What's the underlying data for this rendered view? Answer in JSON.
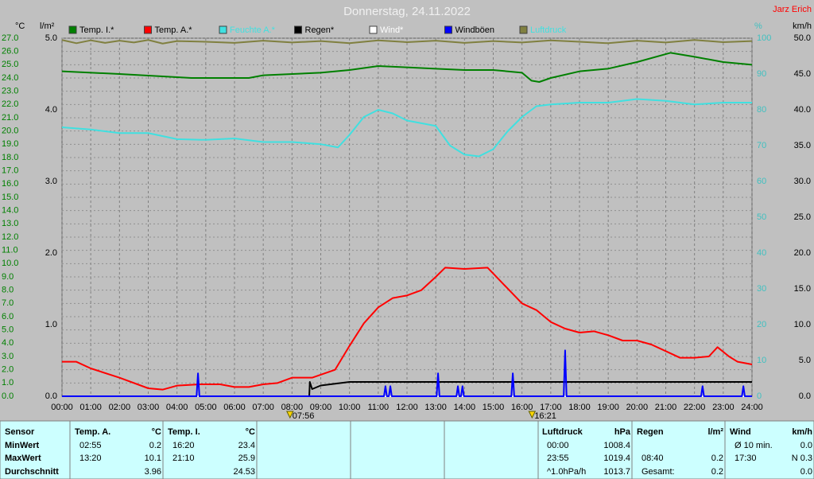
{
  "chart_data": {
    "type": "line",
    "title": "Donnerstag, 24.11.2022",
    "author": "Jarz Erich",
    "y_label": "°C",
    "y2_label": "l/m²",
    "y3_label": "%",
    "y4_label": "km/h",
    "xlim": [
      0,
      24
    ],
    "xticks": [
      {
        "value": 0,
        "label": "00:00"
      },
      {
        "value": 1,
        "label": "01:00"
      },
      {
        "value": 2,
        "label": "02:00"
      },
      {
        "value": 3,
        "label": "03:00"
      },
      {
        "value": 4,
        "label": "04:00"
      },
      {
        "value": 5,
        "label": "05:00"
      },
      {
        "value": 6,
        "label": "06:00"
      },
      {
        "value": 7,
        "label": "07:00"
      },
      {
        "value": 8,
        "label": "08:00"
      },
      {
        "value": 9,
        "label": "09:00"
      },
      {
        "value": 10,
        "label": "10:00"
      },
      {
        "value": 11,
        "label": "11:00"
      },
      {
        "value": 12,
        "label": "12:00"
      },
      {
        "value": 13,
        "label": "13:00"
      },
      {
        "value": 14,
        "label": "14:00"
      },
      {
        "value": 15,
        "label": "15:00"
      },
      {
        "value": 16,
        "label": "16:00"
      },
      {
        "value": 17,
        "label": "17:00"
      },
      {
        "value": 18,
        "label": "18:00"
      },
      {
        "value": 19,
        "label": "19:00"
      },
      {
        "value": 20,
        "label": "20:00"
      },
      {
        "value": 21,
        "label": "21:00"
      },
      {
        "value": 22,
        "label": "22:00"
      },
      {
        "value": 23,
        "label": "23:00"
      },
      {
        "value": 24,
        "label": "24:00"
      }
    ],
    "ylim": [
      0,
      27
    ],
    "yticks": [
      {
        "value": 0,
        "label": "0.0"
      },
      {
        "value": 1,
        "label": "1.0"
      },
      {
        "value": 2,
        "label": "2.0"
      },
      {
        "value": 3,
        "label": "3.0"
      },
      {
        "value": 4,
        "label": "4.0"
      },
      {
        "value": 5,
        "label": "5.0"
      },
      {
        "value": 6,
        "label": "6.0"
      },
      {
        "value": 7,
        "label": "7.0"
      },
      {
        "value": 8,
        "label": "8.0"
      },
      {
        "value": 9,
        "label": "9.0"
      },
      {
        "value": 10,
        "label": "10.0"
      },
      {
        "value": 11,
        "label": "11.0"
      },
      {
        "value": 12,
        "label": "12.0"
      },
      {
        "value": 13,
        "label": "13.0"
      },
      {
        "value": 14,
        "label": "14.0"
      },
      {
        "value": 15,
        "label": "15.0"
      },
      {
        "value": 16,
        "label": "16.0"
      },
      {
        "value": 17,
        "label": "17.0"
      },
      {
        "value": 18,
        "label": "18.0"
      },
      {
        "value": 19,
        "label": "19.0"
      },
      {
        "value": 20,
        "label": "20.0"
      },
      {
        "value": 21,
        "label": "21.0"
      },
      {
        "value": 22,
        "label": "22.0"
      },
      {
        "value": 23,
        "label": "23.0"
      },
      {
        "value": 24,
        "label": "24.0"
      },
      {
        "value": 25,
        "label": "25.0"
      },
      {
        "value": 26,
        "label": "26.0"
      },
      {
        "value": 27,
        "label": "27.0"
      }
    ],
    "y2lim": [
      0,
      5
    ],
    "y2ticks": [
      {
        "value": 0,
        "label": "0.0"
      },
      {
        "value": 1,
        "label": "1.0"
      },
      {
        "value": 2,
        "label": "2.0"
      },
      {
        "value": 3,
        "label": "3.0"
      },
      {
        "value": 4,
        "label": "4.0"
      },
      {
        "value": 5,
        "label": "5.0"
      }
    ],
    "y3lim": [
      0,
      100
    ],
    "y3ticks": [
      0,
      10,
      20,
      30,
      40,
      50,
      60,
      70,
      80,
      90,
      100
    ],
    "y4lim": [
      0,
      50
    ],
    "y4ticks": [
      {
        "value": 0,
        "label": "0.0"
      },
      {
        "value": 5,
        "label": "5.0"
      },
      {
        "value": 10,
        "label": "10.0"
      },
      {
        "value": 15,
        "label": "15.0"
      },
      {
        "value": 20,
        "label": "20.0"
      },
      {
        "value": 25,
        "label": "25.0"
      },
      {
        "value": 30,
        "label": "30.0"
      },
      {
        "value": 35,
        "label": "35.0"
      },
      {
        "value": 40,
        "label": "40.0"
      },
      {
        "value": 45,
        "label": "45.0"
      },
      {
        "value": 50,
        "label": "50.0"
      }
    ],
    "grid": true,
    "series": [
      {
        "name": "Temp. I.*",
        "color": "#008000",
        "label_color": "#000000",
        "axis": "y",
        "x": [
          0,
          2,
          4.5,
          6.5,
          7,
          9,
          10,
          11,
          12,
          13,
          14,
          15,
          16,
          16.33,
          16.6,
          17,
          18,
          19,
          20,
          21.17,
          22,
          23,
          24
        ],
        "values": [
          24.5,
          24.3,
          24.0,
          24.0,
          24.2,
          24.4,
          24.6,
          24.9,
          24.8,
          24.7,
          24.6,
          24.6,
          24.4,
          23.8,
          23.7,
          24.0,
          24.5,
          24.7,
          25.2,
          25.9,
          25.6,
          25.2,
          25.0
        ]
      },
      {
        "name": "Temp. A.*",
        "color": "#ff0000",
        "label_color": "#000000",
        "axis": "y",
        "x": [
          0,
          0.5,
          1,
          2,
          3,
          3.5,
          4,
          4.8,
          5.5,
          6,
          6.5,
          7,
          7.5,
          8,
          8.7,
          9.5,
          10,
          10.5,
          11,
          11.5,
          12,
          12.5,
          13,
          13.33,
          14,
          14.8,
          15.2,
          16,
          16.5,
          17,
          17.5,
          18,
          18.5,
          19,
          19.5,
          20,
          20.5,
          21,
          21.5,
          22,
          22.5,
          22.8,
          23.2,
          23.5,
          24
        ],
        "values": [
          2.6,
          2.6,
          2.1,
          1.4,
          0.6,
          0.5,
          0.8,
          0.9,
          0.9,
          0.7,
          0.7,
          0.9,
          1.0,
          1.4,
          1.4,
          2.0,
          3.8,
          5.5,
          6.7,
          7.4,
          7.6,
          8.0,
          9.0,
          9.7,
          9.6,
          9.7,
          8.8,
          7.0,
          6.5,
          5.6,
          5.1,
          4.8,
          4.9,
          4.6,
          4.2,
          4.2,
          3.9,
          3.4,
          2.9,
          2.9,
          3.0,
          3.7,
          3.0,
          2.6,
          2.4
        ]
      },
      {
        "name": "Feuchte A.*",
        "color": "#40e0e0",
        "label_color": "#40e0e0",
        "axis": "y3",
        "x": [
          0,
          1,
          2,
          3,
          4,
          5,
          6,
          7,
          8,
          9,
          9.6,
          10,
          10.5,
          11,
          11.5,
          12,
          13,
          13.5,
          14,
          14.5,
          15,
          15.5,
          16,
          16.5,
          17,
          18,
          19,
          20,
          21,
          22,
          23,
          24
        ],
        "values": [
          75.1,
          74.5,
          73.5,
          73.5,
          71.8,
          71.6,
          72,
          71,
          71,
          70.4,
          69.5,
          73,
          78,
          80,
          79,
          77,
          75.5,
          70,
          67.5,
          67,
          69,
          74,
          78,
          81,
          81.5,
          82,
          82,
          83,
          82.5,
          81.5,
          82,
          82
        ]
      },
      {
        "name": "Regen*",
        "color": "#000000",
        "label_color": "#000000",
        "axis": "y2",
        "x": [
          0,
          8.6,
          8.62,
          8.7,
          9,
          10,
          24
        ],
        "values": [
          0,
          0,
          0.2,
          0.1,
          0.15,
          0.2,
          0.2
        ]
      },
      {
        "name": "Wind*",
        "color": "#ffffff",
        "label_color": "#ffffff",
        "axis": "y4",
        "x": [
          0,
          24
        ],
        "values": [
          0,
          0
        ]
      },
      {
        "name": "Windböen",
        "color": "#0000ff",
        "label_color": "#000000",
        "axis": "y4",
        "x": [
          0,
          4.68,
          4.73,
          4.78,
          11.2,
          11.25,
          11.3,
          11.37,
          11.42,
          11.47,
          13.03,
          13.08,
          13.13,
          13.72,
          13.77,
          13.82,
          13.88,
          13.93,
          13.98,
          15.63,
          15.68,
          15.73,
          17.45,
          17.5,
          17.55,
          22.23,
          22.28,
          22.33,
          23.65,
          23.7,
          23.75,
          24
        ],
        "values": [
          0,
          0,
          3.2,
          0,
          0,
          1.4,
          0,
          0,
          1.4,
          0,
          0,
          3.2,
          0,
          0,
          1.4,
          0,
          0,
          1.4,
          0,
          0,
          3.2,
          0,
          0,
          6.4,
          0,
          0,
          1.4,
          0,
          0,
          1.4,
          0,
          0
        ]
      },
      {
        "name": "Luftdruck",
        "color": "#808040",
        "label_color": "#40e0e0",
        "axis": "y3",
        "x": [
          0,
          0.5,
          1,
          1.5,
          2,
          2.5,
          3,
          3.5,
          4,
          5,
          6,
          7,
          8,
          9,
          10,
          11,
          12,
          13,
          14,
          15,
          16,
          17,
          18,
          19,
          20,
          21,
          22,
          23,
          24
        ],
        "values": [
          99.5,
          98.6,
          99.4,
          98.7,
          99.3,
          98.8,
          99.5,
          98.5,
          99.2,
          99.0,
          98.7,
          99.3,
          98.8,
          99.2,
          98.6,
          99.4,
          98.9,
          99.3,
          98.7,
          99.2,
          98.8,
          99.4,
          99.0,
          98.6,
          99.3,
          98.8,
          99.5,
          98.9,
          99.2
        ]
      }
    ],
    "annotations": [
      {
        "label": "07:56",
        "x": 7.93
      },
      {
        "label": "16:21",
        "x": 16.35
      }
    ]
  },
  "table": {
    "corner": "Sensor",
    "columns": [
      {
        "name": "Temp. A.",
        "unit": "°C"
      },
      {
        "name": "Temp. I.",
        "unit": "°C"
      },
      {
        "name": "Luftdruck",
        "unit": "hPa"
      },
      {
        "name": "Regen",
        "unit": "l/m²"
      },
      {
        "name": "Wind",
        "unit": "km/h"
      }
    ],
    "rows": [
      {
        "label": "MinWert",
        "cells": [
          [
            "02:55",
            "0.2"
          ],
          [
            "16:20",
            "23.4"
          ],
          [
            "00:00",
            "1008.4"
          ],
          [
            null,
            null
          ],
          [
            "Ø 10 min.",
            "0.0"
          ]
        ]
      },
      {
        "label": "MaxWert",
        "cells": [
          [
            "13:20",
            "10.1"
          ],
          [
            "21:10",
            "25.9"
          ],
          [
            "23:55",
            "1019.4"
          ],
          [
            "08:40",
            "0.2"
          ],
          [
            "17:30",
            "N 0.3"
          ]
        ]
      },
      {
        "label": "Durchschnitt",
        "cells": [
          [
            null,
            "3.96"
          ],
          [
            null,
            "24.53"
          ],
          [
            "^1.0hPa/h",
            "1013.7"
          ],
          [
            "Gesamt:",
            "0.2"
          ],
          [
            null,
            "0.0"
          ]
        ]
      }
    ]
  }
}
